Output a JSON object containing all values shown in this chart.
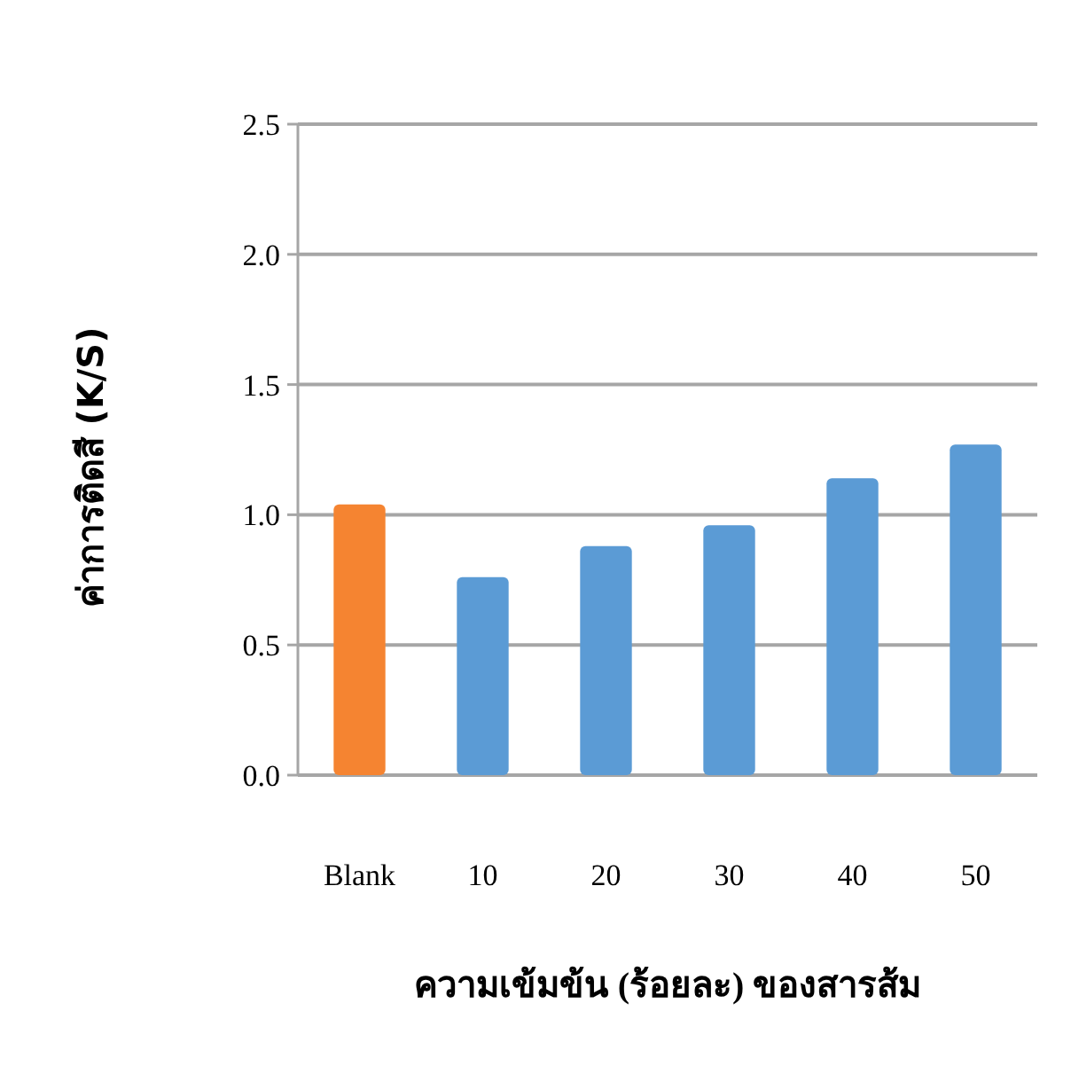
{
  "chart_data": {
    "type": "bar",
    "categories": [
      "Blank",
      "10",
      "20",
      "30",
      "40",
      "50"
    ],
    "values": [
      1.04,
      0.76,
      0.88,
      0.96,
      1.14,
      1.27
    ],
    "colors": [
      "#f58431",
      "#5b9bd5",
      "#5b9bd5",
      "#5b9bd5",
      "#5b9bd5",
      "#5b9bd5"
    ],
    "ylim": [
      0,
      2.5
    ],
    "yticks": [
      {
        "value": 0,
        "label": "0.0"
      },
      {
        "value": 0.5,
        "label": "0.5"
      },
      {
        "value": 1,
        "label": "1.0"
      },
      {
        "value": 1.5,
        "label": "1.5"
      },
      {
        "value": 2,
        "label": "2.0"
      },
      {
        "value": 2.5,
        "label": "2.5"
      }
    ],
    "grid": "y",
    "xlabel": "ความเข้มข้น (ร้อยละ) ของสารส้ม",
    "ylabel": "ค่าการติดสี (K/S)"
  }
}
